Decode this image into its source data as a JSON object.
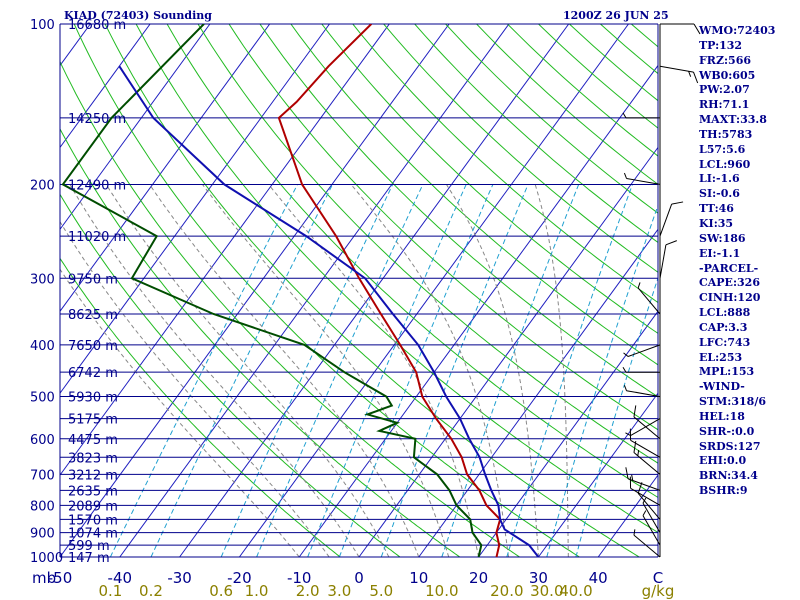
{
  "header": {
    "station_title": "KIAD (72403) Sounding",
    "valid_time": "1200Z 26 JUN 25"
  },
  "indices": [
    "WMO:72403",
    "TP:132",
    "FRZ:566",
    "WB0:605",
    "PW:2.07",
    "RH:71.1",
    "MAXT:33.8",
    "TH:5783",
    "L57:5.6",
    "LCL:960",
    "LI:-1.6",
    "SI:-0.6",
    "TT:46",
    "KI:35",
    "SW:186",
    "EI:-1.1",
    "-PARCEL-",
    "CAPE:326",
    "CINH:120",
    "LCL:888",
    "CAP:3.3",
    "LFC:743",
    "EL:253",
    "MPL:153",
    "-WIND-",
    "STM:318/6",
    "HEL:18",
    "SHR-:0.0",
    "SRDS:127",
    "EHI:0.0",
    "BRN:34.4",
    "BSHR:9"
  ],
  "colors": {
    "axis_text": "#00008b",
    "isobar": "#00008b",
    "isotherm": "#2020c0",
    "dry_adiabat": "#22bb22",
    "moist_adiabat": "#888888",
    "mixing_ratio": "#20a0d0",
    "temperature": "#b00000",
    "dewpoint": "#004d00",
    "parcel": "#1010b0",
    "wind_barb": "#000000"
  },
  "chart_data": {
    "type": "skew-t",
    "pressure_axis_label": "mb",
    "temperature_unit": "C",
    "mixing_ratio_unit": "g/kg",
    "plim": [
      1000,
      100
    ],
    "tlim": [
      -50,
      50
    ],
    "pressure_ticks": [
      100,
      200,
      300,
      400,
      500,
      600,
      700,
      800,
      900,
      1000
    ],
    "height_labels": [
      {
        "p": 100,
        "label": "16680 m"
      },
      {
        "p": 150,
        "label": "14250 m"
      },
      {
        "p": 200,
        "label": "12490 m"
      },
      {
        "p": 250,
        "label": "11020 m"
      },
      {
        "p": 300,
        "label": "9750 m"
      },
      {
        "p": 350,
        "label": "8625 m"
      },
      {
        "p": 400,
        "label": "7650 m"
      },
      {
        "p": 450,
        "label": "6742 m"
      },
      {
        "p": 500,
        "label": "5930 m"
      },
      {
        "p": 550,
        "label": "5175 m"
      },
      {
        "p": 600,
        "label": "4475 m"
      },
      {
        "p": 650,
        "label": "3823 m"
      },
      {
        "p": 700,
        "label": "3212 m"
      },
      {
        "p": 750,
        "label": "2635 m"
      },
      {
        "p": 800,
        "label": "2089 m"
      },
      {
        "p": 850,
        "label": "1570 m"
      },
      {
        "p": 900,
        "label": "1074 m"
      },
      {
        "p": 950,
        "label": "599 m"
      },
      {
        "p": 1000,
        "label": "147 m"
      }
    ],
    "temperature_ticks": [
      "-50",
      "-40",
      "-30",
      "-20",
      "-10",
      "0",
      "10",
      "20",
      "30",
      "40"
    ],
    "mixing_ratio_ticks": [
      "0.1",
      "0.2",
      "0.6",
      "1.0",
      "2.0",
      "3.0",
      "5.0",
      "10.0",
      "20.0",
      "30.0",
      "40.0"
    ],
    "isotherms_C": [
      -160,
      -150,
      -140,
      -130,
      -120,
      -110,
      -100,
      -90,
      -80,
      -70,
      -60,
      -50,
      -40,
      -30,
      -20,
      -10,
      0,
      10,
      20,
      30,
      40,
      50
    ],
    "dry_adiabats_K": [
      270,
      280,
      290,
      300,
      310,
      320,
      330,
      340,
      350,
      360,
      370,
      380,
      390,
      400,
      410,
      420,
      430,
      440,
      450,
      460,
      470,
      480,
      490,
      500,
      510,
      520,
      530
    ],
    "moist_adiabats_C": [
      -10,
      -5,
      0,
      5,
      10,
      15,
      20,
      25,
      30,
      35
    ],
    "mixing_ratios_gkg": [
      0.1,
      0.2,
      0.6,
      1.0,
      2.0,
      3.0,
      5.0,
      10.0,
      20.0,
      30.0,
      40.0
    ],
    "series": [
      {
        "key": "temperature",
        "points": [
          [
            100,
            -63
          ],
          [
            120,
            -65
          ],
          [
            140,
            -66
          ],
          [
            150,
            -67
          ],
          [
            200,
            -55
          ],
          [
            250,
            -43
          ],
          [
            300,
            -34
          ],
          [
            350,
            -26
          ],
          [
            400,
            -19
          ],
          [
            450,
            -13
          ],
          [
            500,
            -9
          ],
          [
            550,
            -4
          ],
          [
            600,
            1
          ],
          [
            650,
            5
          ],
          [
            700,
            8
          ],
          [
            750,
            12
          ],
          [
            800,
            15
          ],
          [
            850,
            19
          ],
          [
            900,
            20
          ],
          [
            950,
            22
          ],
          [
            1000,
            23
          ]
        ]
      },
      {
        "key": "dewpoint",
        "points": [
          [
            100,
            -91
          ],
          [
            150,
            -95
          ],
          [
            200,
            -95
          ],
          [
            250,
            -73
          ],
          [
            300,
            -72
          ],
          [
            350,
            -54
          ],
          [
            400,
            -35
          ],
          [
            450,
            -25
          ],
          [
            500,
            -15
          ],
          [
            520,
            -13
          ],
          [
            540,
            -16
          ],
          [
            560,
            -10
          ],
          [
            580,
            -12
          ],
          [
            600,
            -5
          ],
          [
            650,
            -3
          ],
          [
            700,
            3
          ],
          [
            750,
            7
          ],
          [
            800,
            10
          ],
          [
            850,
            14
          ],
          [
            900,
            16
          ],
          [
            950,
            19
          ],
          [
            1000,
            20
          ]
        ]
      },
      {
        "key": "parcel",
        "points": [
          [
            120,
            -100
          ],
          [
            150,
            -88
          ],
          [
            200,
            -68
          ],
          [
            250,
            -48
          ],
          [
            300,
            -33
          ],
          [
            350,
            -24
          ],
          [
            400,
            -16
          ],
          [
            450,
            -10
          ],
          [
            500,
            -5
          ],
          [
            550,
            0
          ],
          [
            600,
            4
          ],
          [
            650,
            8
          ],
          [
            700,
            11
          ],
          [
            750,
            14
          ],
          [
            800,
            17
          ],
          [
            850,
            19
          ],
          [
            888,
            21
          ],
          [
            950,
            27
          ],
          [
            1000,
            30
          ]
        ]
      }
    ],
    "wind_barbs": [
      {
        "p": 100,
        "dir": 90,
        "kt": 10
      },
      {
        "p": 120,
        "dir": 100,
        "kt": 15
      },
      {
        "p": 150,
        "dir": 270,
        "kt": 5
      },
      {
        "p": 200,
        "dir": 280,
        "kt": 5
      },
      {
        "p": 250,
        "dir": 20,
        "kt": 10
      },
      {
        "p": 300,
        "dir": 10,
        "kt": 10
      },
      {
        "p": 350,
        "dir": 320,
        "kt": 5
      },
      {
        "p": 400,
        "dir": 250,
        "kt": 5
      },
      {
        "p": 450,
        "dir": 270,
        "kt": 5
      },
      {
        "p": 500,
        "dir": 280,
        "kt": 5
      },
      {
        "p": 550,
        "dir": 240,
        "kt": 5
      },
      {
        "p": 600,
        "dir": 310,
        "kt": 10
      },
      {
        "p": 650,
        "dir": 300,
        "kt": 10
      },
      {
        "p": 700,
        "dir": 310,
        "kt": 15
      },
      {
        "p": 750,
        "dir": 290,
        "kt": 15
      },
      {
        "p": 800,
        "dir": 300,
        "kt": 10
      },
      {
        "p": 850,
        "dir": 320,
        "kt": 10
      },
      {
        "p": 900,
        "dir": 330,
        "kt": 5
      },
      {
        "p": 950,
        "dir": 330,
        "kt": 5
      },
      {
        "p": 1000,
        "dir": 310,
        "kt": 5
      }
    ]
  }
}
